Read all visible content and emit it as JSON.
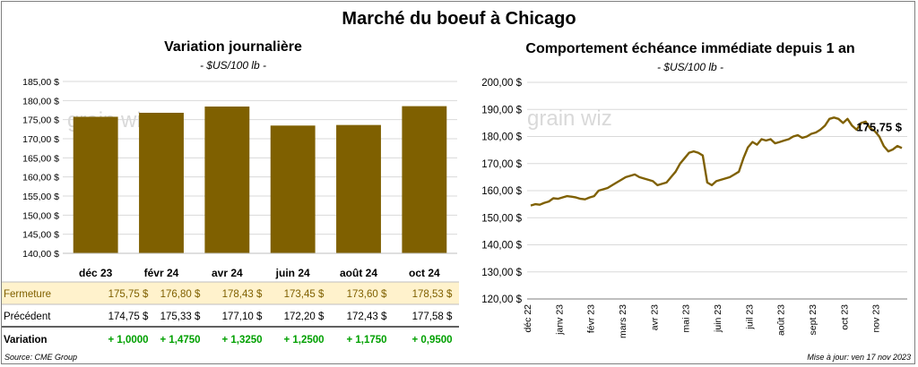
{
  "title": "Marché du boeuf à Chicago",
  "left_chart": {
    "title": "Variation  journalière",
    "unit": "- $US/100 lb -"
  },
  "right_chart": {
    "title": "Comportement  échéance immédiate depuis 1 an",
    "unit": "- $US/100 lb -"
  },
  "watermark": "grain wiz",
  "table": {
    "rows": [
      {
        "label": "Fermeture",
        "values": [
          "175,75  $",
          "176,80  $",
          "178,43  $",
          "173,45  $",
          "173,60  $",
          "178,53  $"
        ]
      },
      {
        "label": "Précédent",
        "values": [
          "174,75  $",
          "175,33  $",
          "177,10  $",
          "172,20  $",
          "172,43  $",
          "177,58  $"
        ]
      },
      {
        "label": "Variation",
        "values": [
          "+ 1,0000",
          "+ 1,4750",
          "+ 1,3250",
          "+ 1,2500",
          "+ 1,1750",
          "+ 0,9500"
        ]
      }
    ]
  },
  "footer": {
    "source": "Source: CME Group",
    "update": "Mise à jour: ven 17 nov 2023"
  },
  "colors": {
    "bar": "#7f6000",
    "line": "#7f6000",
    "highlight_row": "#fff2cc",
    "positive": "#00a000",
    "grid": "#d9d9d9"
  },
  "chart_data": [
    {
      "type": "bar",
      "categories": [
        "déc 23",
        "févr 24",
        "avr 24",
        "juin 24",
        "août 24",
        "oct 24"
      ],
      "values": [
        175.75,
        176.8,
        178.43,
        173.45,
        173.6,
        178.53
      ],
      "title": "Variation  journalière",
      "ylabel": "- $US/100 lb -",
      "ylim": [
        140,
        185
      ],
      "yticks": [
        "140,00 $",
        "145,00 $",
        "150,00 $",
        "155,00 $",
        "160,00 $",
        "165,00 $",
        "170,00 $",
        "175,00 $",
        "180,00 $",
        "185,00 $"
      ],
      "grid": true
    },
    {
      "type": "line",
      "title": "Comportement  échéance immédiate depuis 1 an",
      "ylabel": "- $US/100 lb -",
      "ylim": [
        120,
        200
      ],
      "yticks": [
        "120,00 $",
        "130,00 $",
        "140,00 $",
        "150,00 $",
        "160,00 $",
        "170,00 $",
        "180,00 $",
        "190,00 $",
        "200,00 $"
      ],
      "xticks": [
        "déc 22",
        "janv 23",
        "févr 23",
        "mars 23",
        "avr 23",
        "mai 23",
        "juin 23",
        "juil 23",
        "août 23",
        "sept 23",
        "oct 23",
        "nov 23"
      ],
      "last_label": "175,75 $",
      "values": [
        154.5,
        155.0,
        154.8,
        155.5,
        156.0,
        157.2,
        157.0,
        157.5,
        158.0,
        157.8,
        157.5,
        157.0,
        156.8,
        157.5,
        158.0,
        160.0,
        160.5,
        161.0,
        162.0,
        163.0,
        164.0,
        165.0,
        165.5,
        166.0,
        165.0,
        164.5,
        164.0,
        163.5,
        162.0,
        162.5,
        163.0,
        165.0,
        167.0,
        170.0,
        172.0,
        174.0,
        174.5,
        174.0,
        173.0,
        163.0,
        162.0,
        163.5,
        164.0,
        164.5,
        165.0,
        166.0,
        167.0,
        172.0,
        176.0,
        178.0,
        177.0,
        179.0,
        178.5,
        179.0,
        177.5,
        178.0,
        178.5,
        179.0,
        180.0,
        180.5,
        179.5,
        180.0,
        181.0,
        181.5,
        182.5,
        184.0,
        186.5,
        187.0,
        186.5,
        185.0,
        186.5,
        184.0,
        182.5,
        185.0,
        185.5,
        183.0,
        182.0,
        180.0,
        176.5,
        174.5,
        175.2,
        176.5,
        175.75
      ]
    }
  ]
}
